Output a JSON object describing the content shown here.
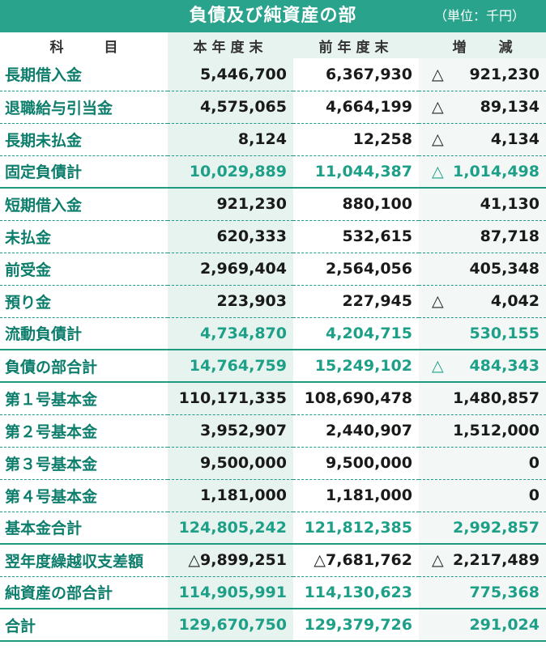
{
  "header": {
    "title": "負債及び純資産の部",
    "unit": "（単位：千円）"
  },
  "columns": [
    "科　目",
    "本年度末",
    "前年度末",
    "増　減"
  ],
  "column_parts": {
    "subject": [
      "科",
      "目"
    ],
    "change": [
      "増",
      "減"
    ]
  },
  "rows": [
    {
      "label": "長期借入金",
      "current": "5,446,700",
      "previous": "6,367,930",
      "change_sign": "△",
      "change": "921,230",
      "subtotal": false
    },
    {
      "label": "退職給与引当金",
      "current": "4,575,065",
      "previous": "4,664,199",
      "change_sign": "△",
      "change": "89,134",
      "subtotal": false
    },
    {
      "label": "長期未払金",
      "current": "8,124",
      "previous": "12,258",
      "change_sign": "△",
      "change": "4,134",
      "subtotal": false
    },
    {
      "label": "固定負債計",
      "current": "10,029,889",
      "previous": "11,044,387",
      "change_sign": "△",
      "change": "1,014,498",
      "subtotal": true
    },
    {
      "label": "短期借入金",
      "current": "921,230",
      "previous": "880,100",
      "change_sign": "",
      "change": "41,130",
      "subtotal": false
    },
    {
      "label": "未払金",
      "current": "620,333",
      "previous": "532,615",
      "change_sign": "",
      "change": "87,718",
      "subtotal": false
    },
    {
      "label": "前受金",
      "current": "2,969,404",
      "previous": "2,564,056",
      "change_sign": "",
      "change": "405,348",
      "subtotal": false
    },
    {
      "label": "預り金",
      "current": "223,903",
      "previous": "227,945",
      "change_sign": "△",
      "change": "4,042",
      "subtotal": false
    },
    {
      "label": "流動負債計",
      "current": "4,734,870",
      "previous": "4,204,715",
      "change_sign": "",
      "change": "530,155",
      "subtotal": true
    },
    {
      "label": "負債の部合計",
      "current": "14,764,759",
      "previous": "15,249,102",
      "change_sign": "△",
      "change": "484,343",
      "subtotal": true
    },
    {
      "label": "第１号基本金",
      "current": "110,171,335",
      "previous": "108,690,478",
      "change_sign": "",
      "change": "1,480,857",
      "subtotal": false
    },
    {
      "label": "第２号基本金",
      "current": "3,952,907",
      "previous": "2,440,907",
      "change_sign": "",
      "change": "1,512,000",
      "subtotal": false
    },
    {
      "label": "第３号基本金",
      "current": "9,500,000",
      "previous": "9,500,000",
      "change_sign": "",
      "change": "0",
      "subtotal": false
    },
    {
      "label": "第４号基本金",
      "current": "1,181,000",
      "previous": "1,181,000",
      "change_sign": "",
      "change": "0",
      "subtotal": false
    },
    {
      "label": "基本金合計",
      "current": "124,805,242",
      "previous": "121,812,385",
      "change_sign": "",
      "change": "2,992,857",
      "subtotal": true
    },
    {
      "label": "翌年度繰越収支差額",
      "current": "△9,899,251",
      "previous": "△7,681,762",
      "change_sign": "△",
      "change": "2,217,489",
      "subtotal": false
    },
    {
      "label": "純資産の部合計",
      "current": "114,905,991",
      "previous": "114,130,623",
      "change_sign": "",
      "change": "775,368",
      "subtotal": true
    },
    {
      "label": "合計",
      "current": "129,670,750",
      "previous": "129,379,726",
      "change_sign": "",
      "change": "291,024",
      "subtotal": true
    }
  ],
  "colors": {
    "accent": "#2aa38c",
    "label_text": "#0d7e6c",
    "subtotal_text": "#1ea088",
    "column_tint": "#e6f3ee"
  }
}
